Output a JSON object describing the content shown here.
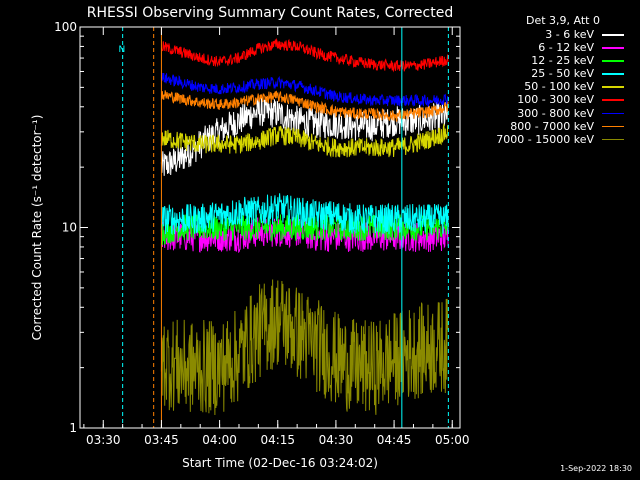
{
  "chart_data": {
    "type": "line",
    "title": "RHESSI Observing Summary Count Rates, Corrected",
    "xlabel": "Start Time (02-Dec-16 03:24:02)",
    "ylabel": "Corrected Count Rate (s⁻¹ detector⁻¹)",
    "y_scale": "log",
    "ylim": [
      1,
      100
    ],
    "y_ticks": [
      "1",
      "10",
      "100"
    ],
    "xlim": [
      "03:24",
      "05:02"
    ],
    "x_ticks": [
      "03:30",
      "03:45",
      "04:00",
      "04:15",
      "04:30",
      "04:45",
      "05:00"
    ],
    "legend_title": "Det 3,9, Att 0",
    "legend_position": "right",
    "timestamp": "1-Sep-2022 18:30",
    "annotations": [
      {
        "text": "N",
        "x": "03:36"
      }
    ],
    "vertical_markers": [
      {
        "x": "03:24",
        "color": "#00ffff",
        "style": "solid"
      },
      {
        "x": "03:35",
        "color": "#00ffff",
        "style": "dashed"
      },
      {
        "x": "03:43",
        "color": "#ff8000",
        "style": "dashed"
      },
      {
        "x": "03:45",
        "color": "#ff8000",
        "style": "solid"
      },
      {
        "x": "04:47",
        "color": "#00ffff",
        "style": "solid"
      },
      {
        "x": "04:59",
        "color": "#00ffff",
        "style": "dashed"
      }
    ],
    "series": [
      {
        "name": "3 - 6 keV",
        "color": "#ffffff",
        "noise": 0.08,
        "x": [
          "03:45",
          "03:50",
          "03:55",
          "04:00",
          "04:05",
          "04:10",
          "04:15",
          "04:20",
          "04:25",
          "04:30",
          "04:35",
          "04:40",
          "04:45",
          "04:50",
          "04:55",
          "04:59"
        ],
        "values": [
          20,
          22,
          26,
          30,
          34,
          38,
          37,
          34,
          33,
          33,
          32,
          32,
          34,
          34,
          35,
          36
        ]
      },
      {
        "name": "6 - 12 keV",
        "color": "#ff00ff",
        "noise": 0.08,
        "x": [
          "03:45",
          "03:50",
          "03:55",
          "04:00",
          "04:05",
          "04:10",
          "04:15",
          "04:20",
          "04:25",
          "04:30",
          "04:35",
          "04:40",
          "04:45",
          "04:50",
          "04:55",
          "04:59"
        ],
        "values": [
          9,
          9,
          9,
          9,
          9,
          9.5,
          9.5,
          9.5,
          9,
          9,
          9,
          9,
          9,
          9,
          9,
          9
        ]
      },
      {
        "name": "12 - 25 keV",
        "color": "#00ff00",
        "noise": 0.07,
        "x": [
          "03:45",
          "03:50",
          "03:55",
          "04:00",
          "04:05",
          "04:10",
          "04:15",
          "04:20",
          "04:25",
          "04:30",
          "04:35",
          "04:40",
          "04:45",
          "04:50",
          "04:55",
          "04:59"
        ],
        "values": [
          9.5,
          10,
          10,
          10,
          10,
          10,
          10,
          10,
          10,
          10,
          10,
          10,
          10,
          10,
          10,
          10
        ]
      },
      {
        "name": "25 - 50 keV",
        "color": "#00ffff",
        "noise": 0.08,
        "x": [
          "03:45",
          "03:50",
          "03:55",
          "04:00",
          "04:05",
          "04:10",
          "04:15",
          "04:20",
          "04:25",
          "04:30",
          "04:35",
          "04:40",
          "04:45",
          "04:50",
          "04:55",
          "04:59"
        ],
        "values": [
          11,
          11,
          11,
          11.5,
          12,
          12,
          12.5,
          12,
          11.5,
          11.5,
          11,
          11,
          11,
          11,
          11,
          11
        ]
      },
      {
        "name": "50 - 100 keV",
        "color": "#d6d600",
        "noise": 0.05,
        "x": [
          "03:45",
          "03:50",
          "03:55",
          "04:00",
          "04:05",
          "04:10",
          "04:15",
          "04:20",
          "04:25",
          "04:30",
          "04:35",
          "04:40",
          "04:45",
          "04:50",
          "04:55",
          "04:59"
        ],
        "values": [
          28,
          27,
          26,
          26,
          26,
          27,
          29,
          28,
          26,
          25,
          25,
          25,
          25,
          26,
          28,
          30
        ]
      },
      {
        "name": "100 - 300 keV",
        "color": "#ff0000",
        "noise": 0.03,
        "x": [
          "03:45",
          "03:50",
          "03:55",
          "04:00",
          "04:05",
          "04:10",
          "04:15",
          "04:20",
          "04:25",
          "04:30",
          "04:35",
          "04:40",
          "04:45",
          "04:50",
          "04:55",
          "04:59"
        ],
        "values": [
          80,
          75,
          70,
          67,
          70,
          78,
          82,
          80,
          74,
          70,
          67,
          65,
          64,
          64,
          66,
          69
        ]
      },
      {
        "name": "300 - 800 keV",
        "color": "#0000ff",
        "noise": 0.03,
        "x": [
          "03:45",
          "03:50",
          "03:55",
          "04:00",
          "04:05",
          "04:10",
          "04:15",
          "04:20",
          "04:25",
          "04:30",
          "04:35",
          "04:40",
          "04:45",
          "04:50",
          "04:55",
          "04:59"
        ],
        "values": [
          56,
          53,
          50,
          49,
          50,
          52,
          53,
          51,
          48,
          45,
          44,
          43,
          43,
          43,
          43,
          44
        ]
      },
      {
        "name": "800 - 7000 keV",
        "color": "#ff8000",
        "noise": 0.03,
        "x": [
          "03:45",
          "03:50",
          "03:55",
          "04:00",
          "04:05",
          "04:10",
          "04:15",
          "04:20",
          "04:25",
          "04:30",
          "04:35",
          "04:40",
          "04:45",
          "04:50",
          "04:55",
          "04:59"
        ],
        "values": [
          46,
          44,
          42,
          41,
          42,
          44,
          45,
          43,
          40,
          38,
          37,
          37,
          36,
          37,
          38,
          40
        ]
      },
      {
        "name": "7000 - 15000 keV",
        "color": "#8a8a00",
        "noise": 0.25,
        "x": [
          "03:45",
          "03:50",
          "03:55",
          "04:00",
          "04:05",
          "04:10",
          "04:15",
          "04:20",
          "04:25",
          "04:30",
          "04:35",
          "04:40",
          "04:45",
          "04:50",
          "04:55",
          "04:59"
        ],
        "values": [
          2.2,
          2.0,
          2.0,
          2.0,
          2.3,
          3.0,
          3.5,
          3.0,
          2.6,
          2.2,
          2.0,
          2.0,
          2.2,
          2.4,
          2.5,
          2.6
        ]
      }
    ]
  }
}
